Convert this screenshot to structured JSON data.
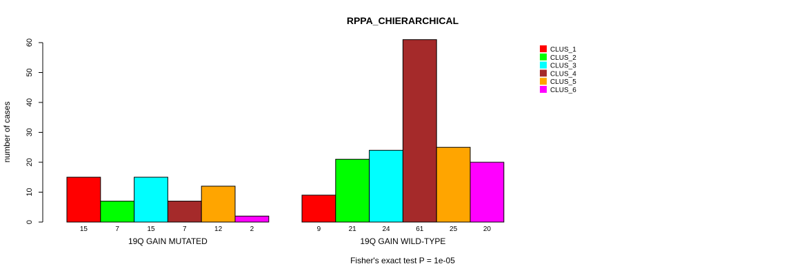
{
  "chart_data": {
    "type": "bar",
    "title": "RPPA_CHIERARCHICAL",
    "ylabel": "number of cases",
    "xlabel": "",
    "ylim": [
      0,
      60
    ],
    "yticks": [
      0,
      10,
      20,
      30,
      40,
      50,
      60
    ],
    "groups": [
      "19Q GAIN MUTATED",
      "19Q GAIN WILD-TYPE"
    ],
    "series": [
      {
        "name": "CLUS_1",
        "color": "#ff0000",
        "values": [
          15,
          9
        ]
      },
      {
        "name": "CLUS_2",
        "color": "#00ff00",
        "values": [
          7,
          21
        ]
      },
      {
        "name": "CLUS_3",
        "color": "#00ffff",
        "values": [
          15,
          24
        ]
      },
      {
        "name": "CLUS_4",
        "color": "#a52a2a",
        "values": [
          7,
          61
        ]
      },
      {
        "name": "CLUS_5",
        "color": "#ffa500",
        "values": [
          12,
          25
        ]
      },
      {
        "name": "CLUS_6",
        "color": "#ff00ff",
        "values": [
          2,
          20
        ]
      }
    ],
    "legend_position": "top-right",
    "annotation": "Fisher's exact test P = 1e-05"
  }
}
